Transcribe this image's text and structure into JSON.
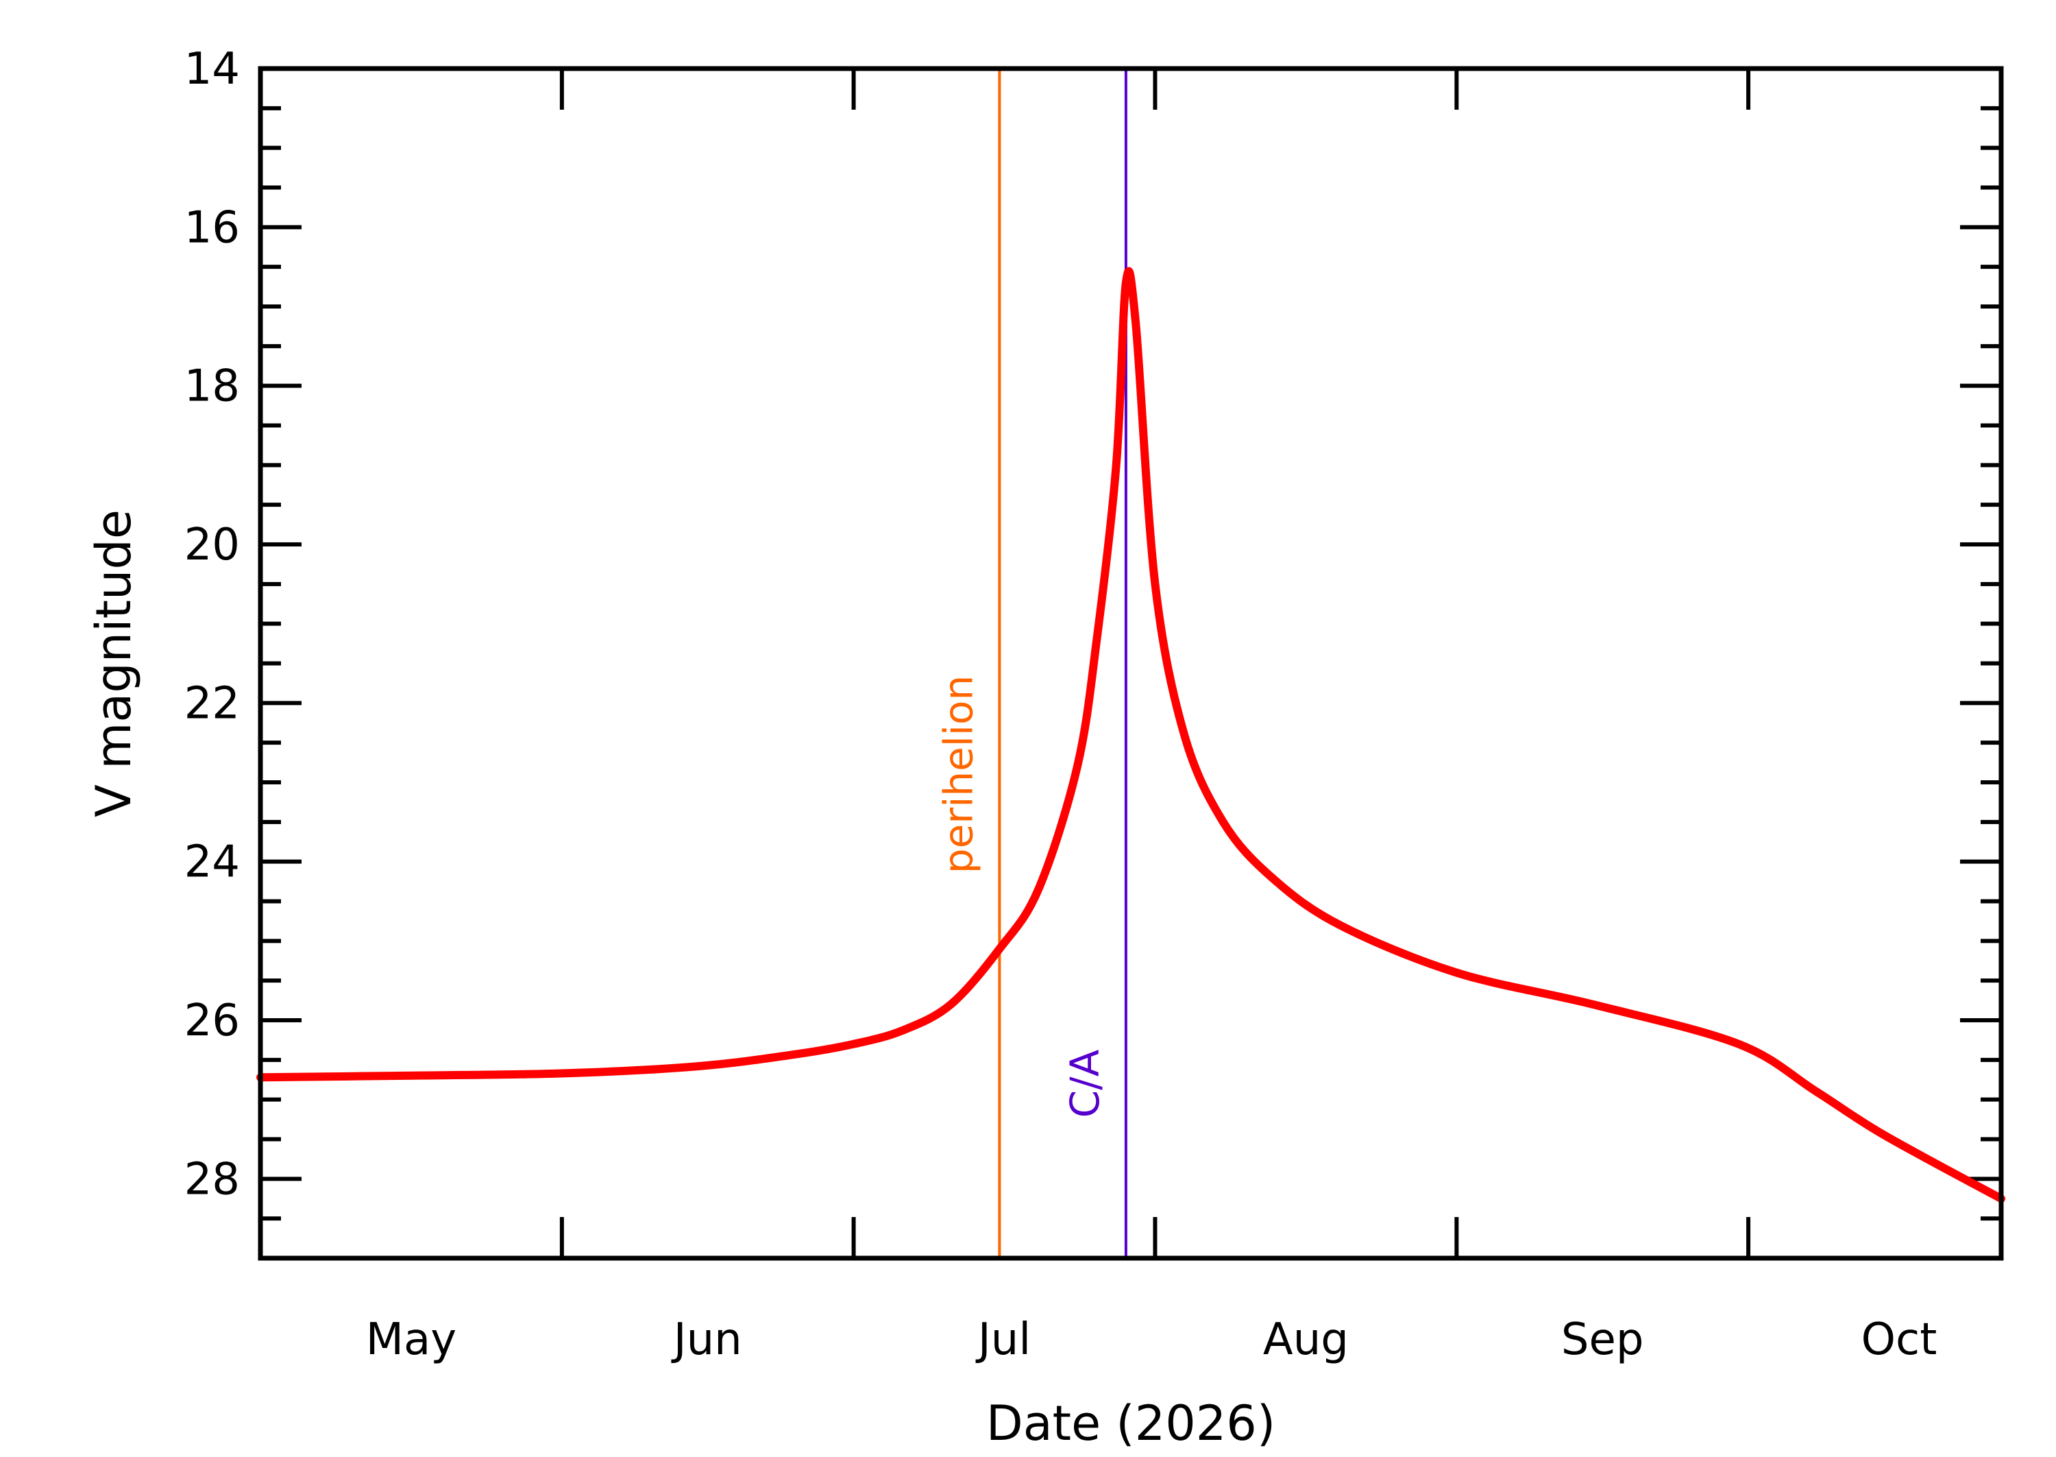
{
  "chart_data": {
    "type": "line",
    "title": "",
    "xlabel": "Date (2026)",
    "ylabel": "V magnitude",
    "x_tick_labels": [
      "May",
      "Jun",
      "Jul",
      "Aug",
      "Sep",
      "Oct"
    ],
    "y_tick_labels": [
      "14",
      "16",
      "18",
      "20",
      "22",
      "24",
      "26",
      "28"
    ],
    "xlim": [
      "2026-05-01",
      "2026-10-27"
    ],
    "ylim": [
      14,
      29
    ],
    "y_inverted": true,
    "grid": false,
    "colors": {
      "curve": "#ff0000",
      "perihelion": "#ff6600",
      "ca": "#5500cc",
      "axes": "#000000"
    },
    "markers": [
      {
        "label": "perihelion",
        "date": "2026-07-16",
        "color": "#ff6600"
      },
      {
        "label": "C/A",
        "date": "2026-07-29",
        "color": "#5500cc"
      }
    ],
    "series": [
      {
        "x": [
          "2026-05-01",
          "2026-05-15",
          "2026-06-01",
          "2026-06-15",
          "2026-06-25",
          "2026-07-01",
          "2026-07-06",
          "2026-07-11",
          "2026-07-16",
          "2026-07-20",
          "2026-07-24",
          "2026-07-26",
          "2026-07-28",
          "2026-07-29",
          "2026-07-30",
          "2026-08-01",
          "2026-08-04",
          "2026-08-08",
          "2026-08-13",
          "2026-08-20",
          "2026-09-01",
          "2026-09-15",
          "2026-09-30",
          "2026-10-08",
          "2026-10-15",
          "2026-10-27"
        ],
        "y": [
          26.72,
          26.7,
          26.67,
          26.58,
          26.43,
          26.3,
          26.13,
          25.8,
          25.1,
          24.35,
          22.8,
          21.2,
          19.0,
          16.7,
          17.2,
          20.5,
          22.4,
          23.5,
          24.2,
          24.8,
          25.4,
          25.8,
          26.3,
          26.9,
          27.45,
          28.25
        ]
      }
    ]
  }
}
